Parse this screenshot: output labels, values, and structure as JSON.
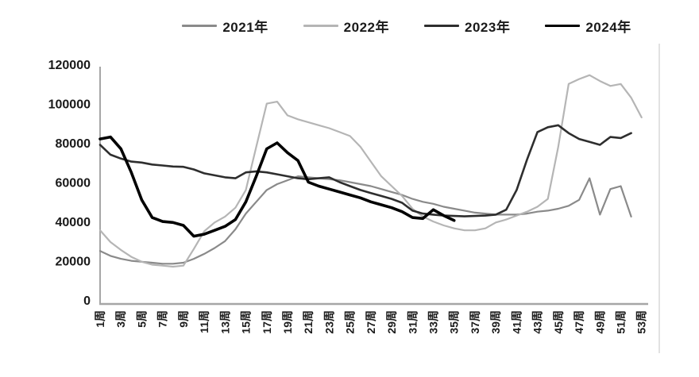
{
  "legend": {
    "position": "top"
  },
  "y_axis": {
    "tick_labels": [
      "0",
      "20000",
      "40000",
      "60000",
      "80000",
      "100000",
      "120000"
    ]
  },
  "x_axis": {
    "tick_labels": [
      "1周",
      "3周",
      "5周",
      "7周",
      "9周",
      "11周",
      "13周",
      "15周",
      "17周",
      "19周",
      "21周",
      "23周",
      "25周",
      "27周",
      "29周",
      "31周",
      "33周",
      "35周",
      "37周",
      "39周",
      "41周",
      "43周",
      "45周",
      "47周",
      "49周",
      "51周",
      "53周"
    ]
  },
  "colors": {
    "axis": "#a6a6a6",
    "label": "#1a1a1a",
    "artifact_line": "#d9d9d9"
  },
  "chart_data": {
    "type": "line",
    "x_unit": "week",
    "x_range": [
      1,
      53
    ],
    "ylim": [
      0,
      120000
    ],
    "y_step": 20000,
    "grid": false,
    "legend_position": "top-center",
    "series": [
      {
        "name": "2021年",
        "color": "#8a8a8a",
        "stroke_width": 2.2,
        "start_week": 1,
        "values": [
          27000,
          24500,
          23000,
          22000,
          21500,
          21000,
          20500,
          20500,
          21000,
          23000,
          25500,
          28500,
          32000,
          38000,
          46000,
          52000,
          58000,
          61000,
          63000,
          65000,
          64500,
          64000,
          63500,
          63000,
          62000,
          61000,
          60000,
          58500,
          57000,
          55500,
          53500,
          52000,
          51000,
          49500,
          48500,
          47500,
          46500,
          46000,
          45500,
          45500,
          45500,
          46000,
          47000,
          47500,
          48500,
          50000,
          53000,
          64000,
          45500,
          58500,
          60000,
          44500
        ]
      },
      {
        "name": "2022年",
        "color": "#b5b5b5",
        "stroke_width": 2.2,
        "start_week": 1,
        "values": [
          37500,
          31500,
          27500,
          24000,
          21500,
          20000,
          19500,
          19000,
          19500,
          28000,
          37000,
          41500,
          44500,
          49000,
          58000,
          80000,
          102000,
          103000,
          96000,
          94000,
          92500,
          91000,
          89500,
          87500,
          85500,
          80000,
          72500,
          65000,
          60000,
          55000,
          48500,
          44500,
          42000,
          40000,
          38500,
          37500,
          37500,
          38500,
          41500,
          43000,
          45000,
          47000,
          49500,
          53500,
          80000,
          112000,
          114500,
          116500,
          113500,
          111000,
          112000,
          105000,
          95000
        ]
      },
      {
        "name": "2023年",
        "color": "#2e2e2e",
        "stroke_width": 2.6,
        "start_week": 1,
        "values": [
          81000,
          76000,
          74000,
          72500,
          72000,
          71000,
          70500,
          70000,
          69800,
          68500,
          66500,
          65500,
          64500,
          64000,
          67000,
          67500,
          67000,
          66000,
          65000,
          64000,
          63500,
          64000,
          64500,
          62000,
          60000,
          58000,
          56500,
          55000,
          53500,
          51500,
          47500,
          46000,
          45500,
          45000,
          44800,
          44600,
          44800,
          45000,
          45500,
          48000,
          58000,
          73500,
          87500,
          90000,
          91000,
          87000,
          84000,
          82500,
          81000,
          85000,
          84500,
          87000
        ]
      },
      {
        "name": "2024年",
        "color": "#000000",
        "stroke_width": 3.6,
        "start_week": 1,
        "values": [
          84000,
          85000,
          79000,
          67000,
          53000,
          44000,
          42000,
          41500,
          40000,
          34500,
          35500,
          37500,
          39500,
          43000,
          52000,
          65000,
          79000,
          82000,
          77000,
          73000,
          62000,
          60000,
          58500,
          57000,
          55500,
          54000,
          52000,
          50500,
          49000,
          47000,
          44000,
          43500,
          48000,
          45000,
          42500
        ]
      }
    ]
  }
}
